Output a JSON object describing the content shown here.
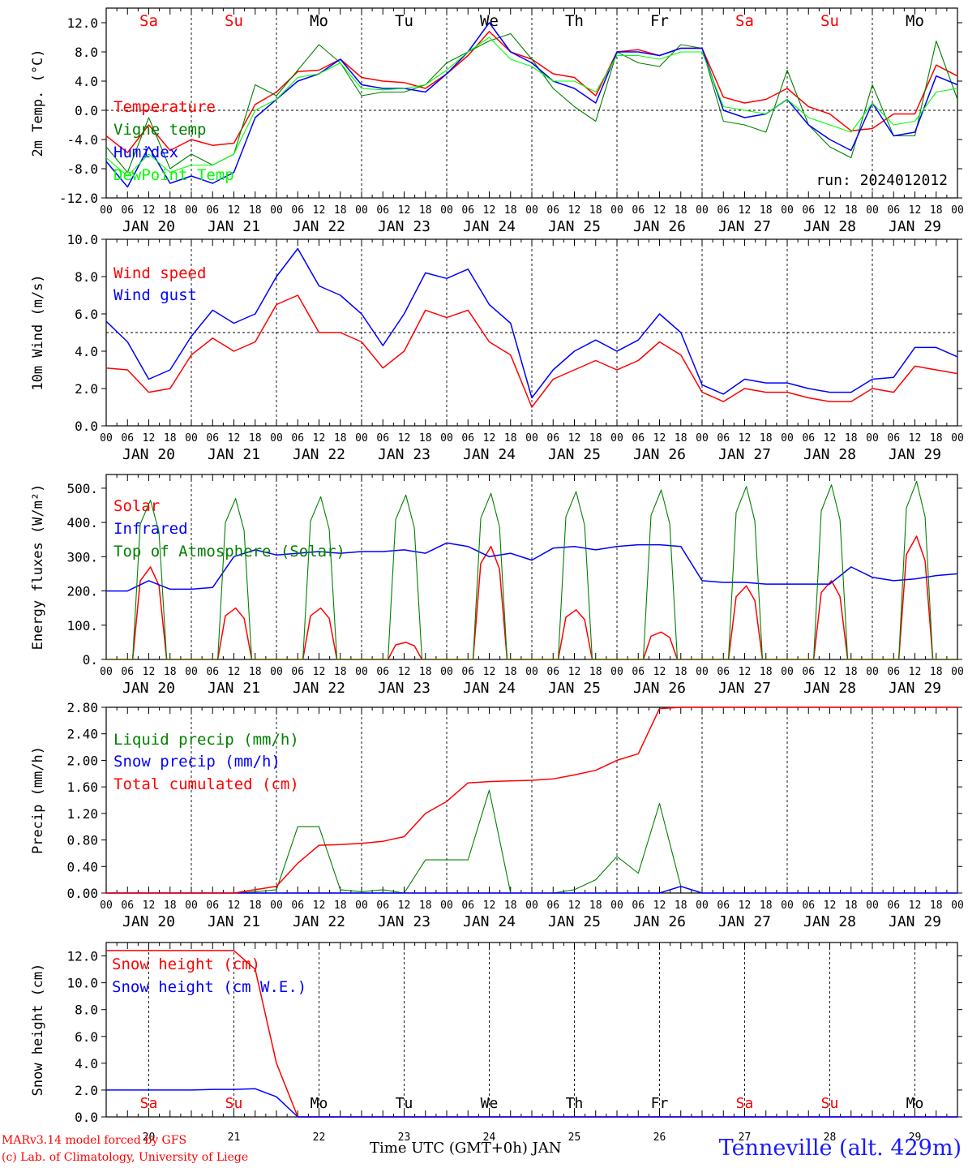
{
  "meteogram": {
    "run_label": "run: 2024012012",
    "x_axis_title": "Time UTC (GMT+0h) JAN",
    "credit_line_1": "MARv3.14 model forced by GFS",
    "credit_line_2": "(c) Lab. of Climatology, University of Liege",
    "station": "Tenneville (alt. 429m)",
    "hour_ticks": [
      "00",
      "06",
      "12",
      "18"
    ],
    "final_tick": "00",
    "day_labels": [
      "JAN 20",
      "JAN 21",
      "JAN 22",
      "JAN 23",
      "JAN 24",
      "JAN 25",
      "JAN 26",
      "JAN 27",
      "JAN 28",
      "JAN 29"
    ],
    "day_numbers": [
      "20",
      "21",
      "22",
      "23",
      "24",
      "25",
      "26",
      "27",
      "28",
      "29"
    ],
    "weekdays": [
      "Sa",
      "Su",
      "Mo",
      "Tu",
      "We",
      "Th",
      "Fr",
      "Sa",
      "Su",
      "Mo"
    ],
    "weekday_colors": [
      "#ff0000",
      "#ff0000",
      "#000000",
      "#000000",
      "#000000",
      "#000000",
      "#000000",
      "#ff0000",
      "#ff0000",
      "#000000"
    ]
  },
  "chart_data": [
    {
      "type": "line",
      "ylabel": "2m Temp. (°C)",
      "ylim": [
        -12,
        14
      ],
      "yticks": [
        "-12.0",
        "-8.0",
        "-4.0",
        "0.0",
        "4.0",
        "8.0",
        "12.0"
      ],
      "ytick_values": [
        -12,
        -8,
        -4,
        0,
        4,
        8,
        12
      ],
      "reference_line": 0,
      "x_days": [
        0,
        0.25,
        0.5,
        0.75,
        1,
        1.25,
        1.5,
        1.75,
        2,
        2.25,
        2.5,
        2.75,
        3,
        3.25,
        3.5,
        3.75,
        4,
        4.25,
        4.5,
        4.75,
        5,
        5.25,
        5.5,
        5.75,
        6,
        6.25,
        6.5,
        6.75,
        7,
        7.25,
        7.5,
        7.75,
        8,
        8.25,
        8.5,
        8.75,
        9,
        9.25,
        9.5,
        9.75,
        10
      ],
      "series": [
        {
          "name": "Temperature",
          "color": "#ff0000",
          "values": [
            -3.5,
            -5.8,
            -2.0,
            -5.5,
            -4.0,
            -4.8,
            -4.5,
            0.8,
            2.5,
            5.3,
            5.5,
            7.0,
            4.5,
            4.0,
            3.8,
            3.0,
            5.0,
            7.5,
            10.8,
            8.0,
            7.0,
            5.0,
            4.5,
            2.0,
            8.0,
            8.3,
            7.5,
            8.5,
            8.5,
            1.8,
            1.0,
            1.5,
            3.0,
            0.5,
            -0.5,
            -2.8,
            -2.5,
            -0.5,
            -0.5,
            6.2,
            4.7
          ]
        },
        {
          "name": "Vigne temp",
          "color": "#008000",
          "values": [
            -5.0,
            -8.5,
            -1.0,
            -8.0,
            -6.0,
            -7.5,
            -6.0,
            3.5,
            2.0,
            5.5,
            9.0,
            6.5,
            2.0,
            2.5,
            2.5,
            3.5,
            6.5,
            8.0,
            9.5,
            10.5,
            7.0,
            3.0,
            0.5,
            -1.5,
            8.0,
            6.5,
            6.0,
            9.0,
            8.5,
            -1.5,
            -2.0,
            -3.0,
            5.5,
            -2.0,
            -5.0,
            -6.5,
            3.5,
            -3.5,
            -3.5,
            9.5,
            1.5
          ]
        },
        {
          "name": "Humidex",
          "color": "#0000ff",
          "values": [
            -7.0,
            -10.5,
            -5.0,
            -10.0,
            -9.0,
            -10.0,
            -8.5,
            -1.0,
            1.5,
            4.0,
            5.0,
            7.0,
            3.5,
            3.0,
            3.0,
            2.5,
            5.0,
            8.0,
            12.0,
            8.0,
            6.5,
            4.0,
            3.0,
            1.0,
            8.0,
            8.0,
            7.5,
            8.5,
            8.5,
            0.0,
            -1.0,
            -0.5,
            1.5,
            -2.0,
            -4.0,
            -5.5,
            1.0,
            -3.5,
            -3.0,
            4.7,
            3.5
          ]
        },
        {
          "name": "DewPoint Temp",
          "color": "#00ff00",
          "values": [
            -6.5,
            -9.0,
            -6.0,
            -8.5,
            -7.5,
            -7.5,
            -6.0,
            0.0,
            1.5,
            4.5,
            5.0,
            6.5,
            3.0,
            2.8,
            3.0,
            3.5,
            5.5,
            8.0,
            10.0,
            7.0,
            6.0,
            4.0,
            4.0,
            2.5,
            7.5,
            7.5,
            7.0,
            8.0,
            8.0,
            0.5,
            0.0,
            -0.5,
            1.5,
            -1.0,
            -2.0,
            -3.0,
            1.0,
            -2.0,
            -1.5,
            2.5,
            3.0
          ]
        }
      ]
    },
    {
      "type": "line",
      "ylabel": "10m Wind (m/s)",
      "ylim": [
        0,
        10
      ],
      "yticks": [
        "0.0",
        "2.0",
        "4.0",
        "6.0",
        "8.0",
        "10.0"
      ],
      "ytick_values": [
        0,
        2,
        4,
        6,
        8,
        10
      ],
      "reference_line": 5,
      "x_days": [
        0,
        0.25,
        0.5,
        0.75,
        1,
        1.25,
        1.5,
        1.75,
        2,
        2.25,
        2.5,
        2.75,
        3,
        3.25,
        3.5,
        3.75,
        4,
        4.25,
        4.5,
        4.75,
        5,
        5.25,
        5.5,
        5.75,
        6,
        6.25,
        6.5,
        6.75,
        7,
        7.25,
        7.5,
        7.75,
        8,
        8.25,
        8.5,
        8.75,
        9,
        9.25,
        9.5,
        9.75,
        10
      ],
      "series": [
        {
          "name": "Wind speed",
          "color": "#ff0000",
          "values": [
            3.1,
            3.0,
            1.8,
            2.0,
            3.8,
            4.7,
            4.0,
            4.5,
            6.5,
            7.0,
            5.0,
            5.0,
            4.5,
            3.1,
            4.0,
            6.2,
            5.8,
            6.2,
            4.5,
            3.8,
            1.0,
            2.5,
            3.0,
            3.5,
            3.0,
            3.5,
            4.5,
            3.8,
            1.8,
            1.3,
            2.0,
            1.8,
            1.8,
            1.5,
            1.3,
            1.3,
            2.0,
            1.8,
            3.2,
            3.0,
            2.8
          ]
        },
        {
          "name": "Wind gust",
          "color": "#0000ff",
          "values": [
            5.6,
            4.5,
            2.5,
            3.0,
            4.8,
            6.2,
            5.5,
            6.0,
            8.0,
            9.5,
            7.5,
            7.0,
            6.0,
            4.3,
            6.0,
            8.2,
            7.9,
            8.4,
            6.5,
            5.5,
            1.5,
            3.0,
            4.0,
            4.6,
            4.0,
            4.6,
            6.0,
            5.0,
            2.2,
            1.7,
            2.5,
            2.3,
            2.3,
            2.0,
            1.8,
            1.8,
            2.5,
            2.6,
            4.2,
            4.2,
            3.7
          ]
        }
      ]
    },
    {
      "type": "line",
      "ylabel": "Energy fluxes (W/m²)",
      "ylim": [
        0,
        540
      ],
      "yticks": [
        "0.",
        "100.",
        "200.",
        "300.",
        "400.",
        "500."
      ],
      "ytick_values": [
        0,
        100,
        200,
        300,
        400,
        500
      ],
      "x_days": [
        0,
        0.25,
        0.5,
        0.75,
        1,
        1.25,
        1.5,
        1.75,
        2,
        2.25,
        2.5,
        2.75,
        3,
        3.25,
        3.5,
        3.75,
        4,
        4.25,
        4.5,
        4.75,
        5,
        5.25,
        5.5,
        5.75,
        6,
        6.25,
        6.5,
        6.75,
        7,
        7.25,
        7.5,
        7.75,
        8,
        8.25,
        8.5,
        8.75,
        9,
        9.25,
        9.5,
        9.75,
        10
      ],
      "series": [
        {
          "name": "Solar",
          "color": "#ff0000",
          "diurnal_peaks": [
            270,
            150,
            150,
            50,
            330,
            145,
            80,
            215,
            230,
            360
          ]
        },
        {
          "name": "Infrared",
          "color": "#0000ff",
          "values": [
            200,
            200,
            230,
            205,
            205,
            210,
            300,
            320,
            305,
            310,
            315,
            310,
            315,
            315,
            320,
            310,
            340,
            330,
            300,
            310,
            290,
            325,
            330,
            320,
            330,
            335,
            335,
            330,
            230,
            225,
            225,
            220,
            220,
            220,
            220,
            270,
            240,
            230,
            235,
            245,
            250
          ]
        },
        {
          "name": "Top of Atmosphere (Solar)",
          "color": "#008000",
          "diurnal_peaks": [
            465,
            470,
            475,
            480,
            485,
            490,
            495,
            505,
            510,
            520
          ]
        }
      ]
    },
    {
      "type": "line",
      "ylabel": "Precip (mm/h)",
      "ylim": [
        0,
        2.8
      ],
      "yticks": [
        "0.00",
        "0.40",
        "0.80",
        "1.20",
        "1.60",
        "2.00",
        "2.40",
        "2.80"
      ],
      "ytick_values": [
        0,
        0.4,
        0.8,
        1.2,
        1.6,
        2.0,
        2.4,
        2.8
      ],
      "x_days": [
        0,
        0.25,
        0.5,
        0.75,
        1,
        1.25,
        1.5,
        1.75,
        2,
        2.25,
        2.5,
        2.75,
        3,
        3.25,
        3.5,
        3.75,
        4,
        4.25,
        4.5,
        4.75,
        5,
        5.25,
        5.5,
        5.75,
        6,
        6.25,
        6.5,
        6.75,
        7,
        7.25,
        7.5,
        7.75,
        8,
        8.25,
        8.5,
        8.75,
        9,
        9.25,
        9.5,
        9.75,
        10
      ],
      "series": [
        {
          "name": "Liquid precip (mm/h)",
          "color": "#008000",
          "values": [
            0,
            0,
            0,
            0,
            0,
            0,
            0,
            0.02,
            0.05,
            1.0,
            1.0,
            0.05,
            0.02,
            0.05,
            0.0,
            0.5,
            0.5,
            0.5,
            1.55,
            0.0,
            0.0,
            0.0,
            0.05,
            0.2,
            0.55,
            0.3,
            1.35,
            0.1,
            0,
            0,
            0,
            0,
            0,
            0,
            0,
            0,
            0,
            0,
            0,
            0,
            0
          ]
        },
        {
          "name": "Snow precip (mm/h)",
          "color": "#0000ff",
          "values": [
            0,
            0,
            0,
            0,
            0,
            0,
            0,
            0,
            0,
            0,
            0,
            0,
            0,
            0,
            0,
            0,
            0,
            0,
            0,
            0,
            0,
            0,
            0,
            0,
            0,
            0,
            0,
            0.1,
            0,
            0,
            0,
            0,
            0,
            0,
            0,
            0,
            0,
            0,
            0,
            0,
            0
          ]
        },
        {
          "name": "Total cumulated (cm)",
          "color": "#ff0000",
          "values": [
            0,
            0,
            0,
            0,
            0,
            0,
            0,
            0.05,
            0.1,
            0.45,
            0.72,
            0.73,
            0.75,
            0.78,
            0.85,
            1.2,
            1.38,
            1.66,
            1.68,
            1.69,
            1.7,
            1.72,
            1.78,
            1.85,
            2.0,
            2.1,
            2.78,
            2.8,
            2.8,
            2.8,
            2.8,
            2.8,
            2.8,
            2.8,
            2.8,
            2.8,
            2.8,
            2.8,
            2.8,
            2.8,
            2.8
          ]
        }
      ]
    },
    {
      "type": "line",
      "ylabel": "Snow height (cm)",
      "ylim": [
        0,
        13
      ],
      "yticks": [
        "0.0",
        "2.0",
        "4.0",
        "6.0",
        "8.0",
        "10.0",
        "12.0"
      ],
      "ytick_values": [
        0,
        2,
        4,
        6,
        8,
        10,
        12
      ],
      "x_days": [
        0,
        0.25,
        0.5,
        0.75,
        1,
        1.25,
        1.5,
        1.75,
        2,
        2.25,
        2.5,
        2.75,
        3,
        3.25,
        3.5,
        3.75,
        4,
        4.25,
        4.5,
        4.75,
        5,
        5.25,
        5.5,
        5.75,
        6,
        6.25,
        6.5,
        6.75,
        7,
        7.25,
        7.5,
        7.75,
        8,
        8.25,
        8.5,
        8.75,
        9,
        9.25,
        9.5,
        9.75,
        10
      ],
      "series": [
        {
          "name": "Snow height (cm)",
          "color": "#ff0000",
          "values": [
            12.4,
            12.4,
            12.4,
            12.4,
            12.4,
            12.4,
            12.4,
            11.0,
            4.0,
            0,
            0,
            0,
            0,
            0,
            0,
            0,
            0,
            0,
            0,
            0,
            0,
            0,
            0,
            0,
            0,
            0,
            0,
            0,
            0,
            0,
            0,
            0,
            0,
            0,
            0,
            0,
            0,
            0,
            0,
            0,
            0
          ]
        },
        {
          "name": "Snow height (cm W.E.)",
          "color": "#0000ff",
          "values": [
            2.0,
            2.0,
            2.0,
            2.0,
            2.0,
            2.05,
            2.05,
            2.1,
            1.5,
            0,
            0,
            0,
            0,
            0,
            0,
            0,
            0,
            0,
            0,
            0,
            0,
            0,
            0,
            0,
            0,
            0,
            0,
            0,
            0,
            0,
            0,
            0,
            0,
            0,
            0,
            0,
            0,
            0,
            0,
            0,
            0
          ]
        }
      ]
    }
  ]
}
